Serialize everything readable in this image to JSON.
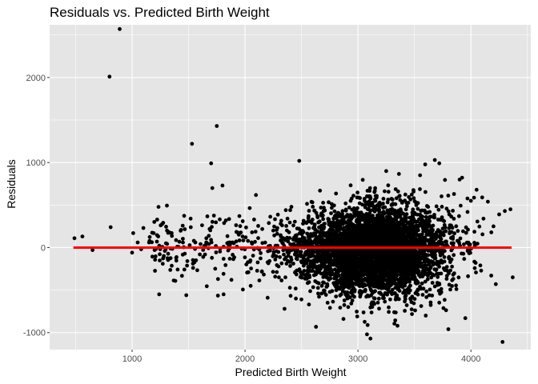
{
  "chart_data": {
    "type": "scatter",
    "title": "Residuals vs. Predicted Birth Weight",
    "xlabel": "Predicted Birth Weight",
    "ylabel": "Residuals",
    "xlim": [
      270,
      4530
    ],
    "ylim": [
      -1200,
      2620
    ],
    "x_ticks": [
      1000,
      2000,
      3000,
      4000
    ],
    "x_tick_labels": [
      "1000",
      "2000",
      "3000",
      "4000"
    ],
    "y_ticks": [
      -1000,
      0,
      1000,
      2000
    ],
    "y_tick_labels": [
      "-1000",
      "0",
      "1000",
      "2000"
    ],
    "grid": true,
    "legend": "none",
    "colors": {
      "panel_background": "#e5e5e5",
      "gridline": "#ffffff",
      "point": "#000000",
      "reference_line": "#ff0000"
    },
    "reference_line": {
      "x": [
        480,
        4360
      ],
      "y": [
        0,
        0
      ]
    },
    "highlight_points": [
      [
        490,
        110
      ],
      [
        560,
        130
      ],
      [
        650,
        -30
      ],
      [
        800,
        2010
      ],
      [
        810,
        240
      ],
      [
        890,
        2570
      ],
      [
        1000,
        -60
      ],
      [
        1010,
        170
      ],
      [
        1050,
        60
      ],
      [
        1080,
        -20
      ],
      [
        1100,
        230
      ],
      [
        1150,
        60
      ],
      [
        1220,
        70
      ],
      [
        1240,
        -550
      ],
      [
        1290,
        -40
      ],
      [
        1300,
        50
      ],
      [
        1350,
        170
      ],
      [
        1400,
        10
      ],
      [
        1450,
        60
      ],
      [
        1480,
        -560
      ],
      [
        1520,
        240
      ],
      [
        1530,
        1220
      ],
      [
        1560,
        60
      ],
      [
        1600,
        -80
      ],
      [
        1650,
        30
      ],
      [
        1700,
        990
      ],
      [
        1710,
        700
      ],
      [
        1750,
        1430
      ],
      [
        1780,
        -10
      ],
      [
        1800,
        730
      ],
      [
        1810,
        -550
      ],
      [
        1830,
        320
      ],
      [
        1880,
        -380
      ],
      [
        1900,
        50
      ],
      [
        1950,
        370
      ],
      [
        1980,
        310
      ],
      [
        2050,
        -450
      ],
      [
        2080,
        330
      ],
      [
        2150,
        -280
      ],
      [
        2200,
        -590
      ],
      [
        2250,
        200
      ],
      [
        2300,
        -350
      ],
      [
        2350,
        -720
      ],
      [
        2400,
        440
      ],
      [
        2450,
        -600
      ],
      [
        2480,
        1020
      ],
      [
        2550,
        -350
      ],
      [
        2600,
        480
      ],
      [
        3080,
        -1020
      ],
      [
        3110,
        -1070
      ],
      [
        3250,
        900
      ],
      [
        3350,
        -920
      ],
      [
        3550,
        850
      ],
      [
        3600,
        -800
      ],
      [
        3680,
        1030
      ],
      [
        3720,
        990
      ],
      [
        3800,
        -960
      ],
      [
        3850,
        630
      ],
      [
        3900,
        800
      ],
      [
        3950,
        -830
      ],
      [
        4000,
        550
      ],
      [
        4050,
        680
      ],
      [
        4100,
        590
      ],
      [
        4150,
        540
      ],
      [
        4180,
        -330
      ],
      [
        4200,
        250
      ],
      [
        4220,
        -430
      ],
      [
        4250,
        390
      ],
      [
        4280,
        -1110
      ],
      [
        4300,
        430
      ],
      [
        4350,
        450
      ],
      [
        4370,
        -350
      ]
    ],
    "dense_cloud": {
      "count": 4200,
      "x_mean": 3150,
      "x_sd": 320,
      "y_mean": -30,
      "y_sd": 270,
      "x_range": [
        1900,
        4380
      ],
      "y_range": [
        -1000,
        1000
      ],
      "sparse_left_count": 260,
      "sparse_left_x_range": [
        1150,
        2600
      ],
      "sparse_left_y_sd": 200
    }
  }
}
